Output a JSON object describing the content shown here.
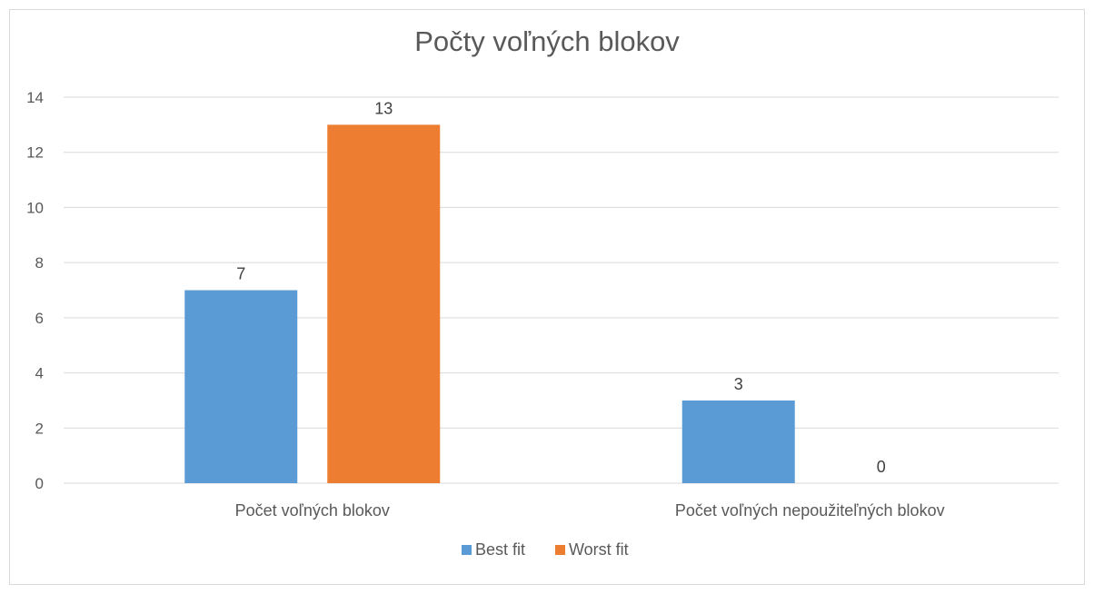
{
  "chart_data": {
    "type": "bar",
    "title": "Počty voľných blokov",
    "categories": [
      "Počet voľných blokov",
      "Počet voľných nepoužiteľných blokov"
    ],
    "series": [
      {
        "name": "Best fit",
        "values": [
          7,
          3
        ],
        "color": "#5b9bd5"
      },
      {
        "name": "Worst fit",
        "values": [
          13,
          0
        ],
        "color": "#ed7d31"
      }
    ],
    "ylim": [
      0,
      14
    ],
    "yticks": [
      0,
      2,
      4,
      6,
      8,
      10,
      12,
      14
    ],
    "grid": true,
    "legend": "bottom"
  }
}
